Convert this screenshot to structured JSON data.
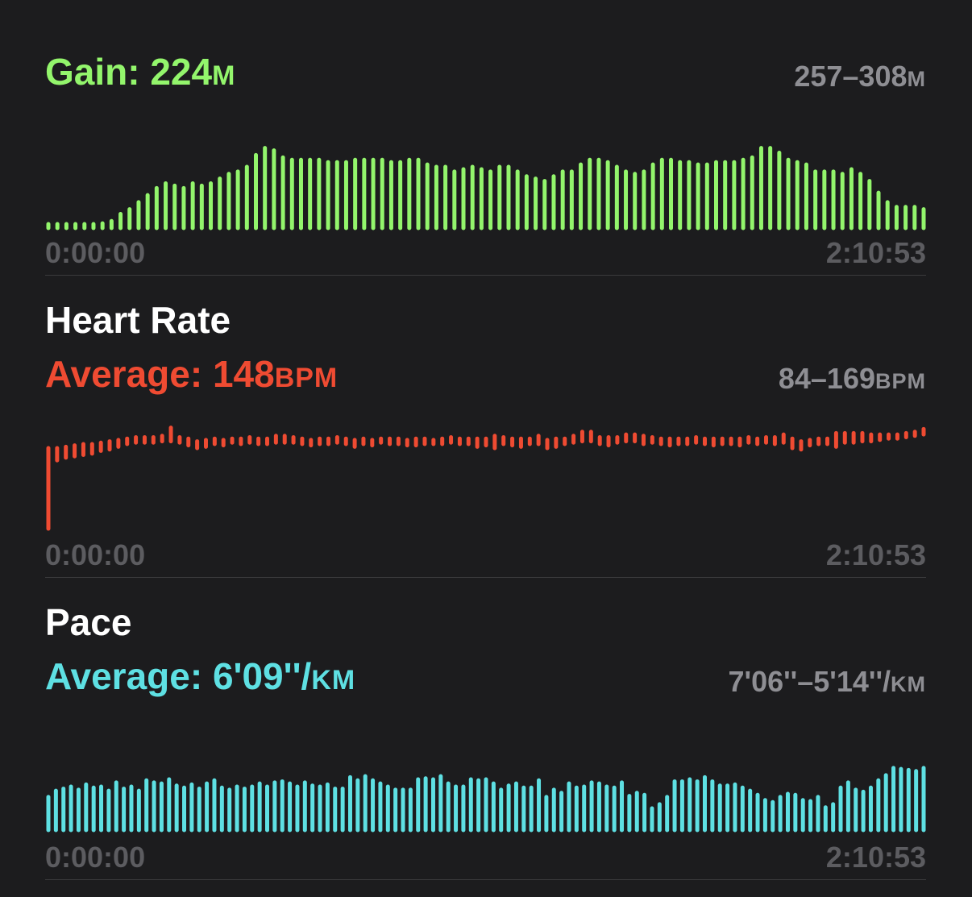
{
  "colors": {
    "elevation": "#93f56c",
    "heart_rate": "#ef4b32",
    "pace": "#5ee0e3"
  },
  "sections": {
    "elevation": {
      "title": "",
      "avg_label": "Gain: ",
      "avg_value": "224",
      "avg_unit": "M",
      "range_value": "257–308",
      "range_unit": "M",
      "start_time": "0:00:00",
      "end_time": "2:10:53"
    },
    "heart_rate": {
      "title": "Heart Rate",
      "avg_label": "Average: ",
      "avg_value": "148",
      "avg_unit": "BPM",
      "range_value": "84–169",
      "range_unit": "BPM",
      "start_time": "0:00:00",
      "end_time": "2:10:53"
    },
    "pace": {
      "title": "Pace",
      "avg_label": "Average: ",
      "avg_value": "6'09''/",
      "avg_unit": "KM",
      "range_value": "7'06''–5'14''/",
      "range_unit": "KM",
      "start_time": "0:00:00",
      "end_time": "2:10:53"
    }
  },
  "chart_data": [
    {
      "type": "bar",
      "name": "elevation",
      "y_unit": "m",
      "ylim": [
        257,
        308
      ],
      "x_range": [
        "0:00:00",
        "2:10:53"
      ],
      "values": [
        258,
        258,
        258,
        258,
        258,
        258,
        259,
        260,
        263,
        265,
        268,
        271,
        274,
        276,
        275,
        274,
        276,
        275,
        276,
        278,
        280,
        281,
        283,
        288,
        291,
        290,
        287,
        286,
        286,
        286,
        286,
        285,
        285,
        285,
        286,
        286,
        286,
        286,
        285,
        285,
        286,
        286,
        284,
        283,
        283,
        281,
        282,
        283,
        282,
        281,
        283,
        283,
        281,
        279,
        278,
        277,
        279,
        281,
        281,
        284,
        286,
        286,
        285,
        283,
        281,
        280,
        281,
        284,
        286,
        286,
        285,
        285,
        284,
        284,
        285,
        285,
        285,
        286,
        287,
        291,
        291,
        289,
        286,
        285,
        284,
        281,
        281,
        281,
        280,
        282,
        280,
        277,
        272,
        268,
        266,
        266,
        266,
        265
      ],
      "grid": false
    },
    {
      "type": "range-bar",
      "name": "heart_rate",
      "y_unit": "bpm",
      "ylim": [
        84,
        169
      ],
      "x_range": [
        "0:00:00",
        "2:10:53"
      ],
      "values": [
        [
          84,
          143
        ],
        [
          134,
          143
        ],
        [
          136,
          144
        ],
        [
          137,
          145
        ],
        [
          138,
          146
        ],
        [
          139,
          146
        ],
        [
          141,
          147
        ],
        [
          142,
          148
        ],
        [
          144,
          149
        ],
        [
          146,
          150
        ],
        [
          147,
          151
        ],
        [
          147,
          151
        ],
        [
          147,
          151
        ],
        [
          148,
          152
        ],
        [
          148,
          158
        ],
        [
          147,
          151
        ],
        [
          145,
          150
        ],
        [
          143,
          148
        ],
        [
          144,
          149
        ],
        [
          146,
          150
        ],
        [
          145,
          149
        ],
        [
          147,
          150
        ],
        [
          146,
          150
        ],
        [
          147,
          151
        ],
        [
          146,
          150
        ],
        [
          146,
          150
        ],
        [
          147,
          152
        ],
        [
          147,
          152
        ],
        [
          147,
          151
        ],
        [
          146,
          150
        ],
        [
          145,
          149
        ],
        [
          146,
          150
        ],
        [
          146,
          150
        ],
        [
          147,
          151
        ],
        [
          146,
          150
        ],
        [
          144,
          149
        ],
        [
          146,
          150
        ],
        [
          145,
          149
        ],
        [
          147,
          150
        ],
        [
          146,
          150
        ],
        [
          146,
          150
        ],
        [
          145,
          149
        ],
        [
          145,
          150
        ],
        [
          146,
          150
        ],
        [
          146,
          149
        ],
        [
          146,
          150
        ],
        [
          147,
          151
        ],
        [
          146,
          150
        ],
        [
          146,
          150
        ],
        [
          144,
          150
        ],
        [
          145,
          150
        ],
        [
          143,
          152
        ],
        [
          146,
          151
        ],
        [
          145,
          150
        ],
        [
          144,
          150
        ],
        [
          146,
          150
        ],
        [
          146,
          152
        ],
        [
          143,
          149
        ],
        [
          144,
          150
        ],
        [
          146,
          150
        ],
        [
          147,
          152
        ],
        [
          148,
          155
        ],
        [
          148,
          155
        ],
        [
          146,
          151
        ],
        [
          145,
          151
        ],
        [
          147,
          151
        ],
        [
          148,
          153
        ],
        [
          148,
          153
        ],
        [
          146,
          152
        ],
        [
          147,
          151
        ],
        [
          146,
          150
        ],
        [
          145,
          150
        ],
        [
          146,
          150
        ],
        [
          146,
          150
        ],
        [
          147,
          151
        ],
        [
          146,
          150
        ],
        [
          145,
          150
        ],
        [
          146,
          150
        ],
        [
          146,
          150
        ],
        [
          145,
          150
        ],
        [
          147,
          151
        ],
        [
          146,
          150
        ],
        [
          147,
          151
        ],
        [
          146,
          151
        ],
        [
          147,
          153
        ],
        [
          143,
          150
        ],
        [
          142,
          148
        ],
        [
          145,
          149
        ],
        [
          146,
          150
        ],
        [
          146,
          150
        ],
        [
          144,
          154
        ],
        [
          147,
          154
        ],
        [
          147,
          154
        ],
        [
          148,
          154
        ],
        [
          148,
          153
        ],
        [
          149,
          153
        ],
        [
          150,
          153
        ],
        [
          150,
          153
        ],
        [
          151,
          154
        ],
        [
          152,
          155
        ],
        [
          153,
          157
        ]
      ],
      "grid": false
    },
    {
      "type": "bar",
      "name": "pace",
      "y_unit": "min/km",
      "ylim": [
        426,
        314
      ],
      "x_range": [
        "0:00:00",
        "2:10:53"
      ],
      "values": [
        394,
        388,
        386,
        384,
        387,
        382,
        385,
        384,
        388,
        380,
        386,
        384,
        388,
        378,
        380,
        381,
        377,
        383,
        385,
        382,
        386,
        381,
        378,
        385,
        387,
        384,
        386,
        384,
        381,
        384,
        380,
        379,
        381,
        384,
        380,
        383,
        384,
        382,
        386,
        386,
        375,
        378,
        374,
        378,
        381,
        384,
        387,
        387,
        387,
        377,
        376,
        377,
        374,
        381,
        384,
        384,
        377,
        378,
        377,
        381,
        387,
        383,
        381,
        385,
        385,
        378,
        394,
        387,
        390,
        381,
        385,
        384,
        380,
        381,
        384,
        385,
        380,
        393,
        390,
        392,
        405,
        401,
        394,
        379,
        379,
        377,
        379,
        375,
        379,
        383,
        383,
        382,
        385,
        388,
        392,
        397,
        399,
        394,
        391,
        392,
        397,
        398,
        394,
        404,
        401,
        385,
        380,
        387,
        389,
        385,
        378,
        373,
        366,
        367,
        368,
        369,
        366
      ]
    }
  ]
}
